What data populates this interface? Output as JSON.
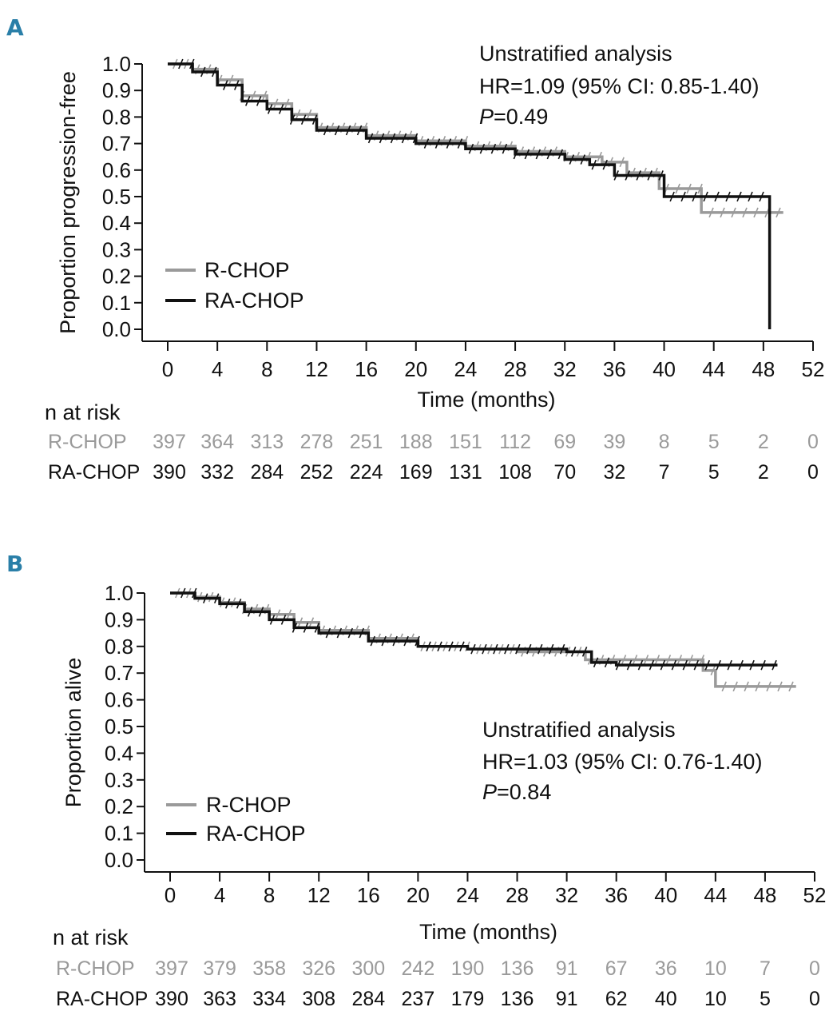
{
  "colors": {
    "r_chop": "#9a9a9a",
    "ra_chop": "#111111",
    "panel_letter": "#2a7fa8"
  },
  "chart_data": [
    {
      "type": "line",
      "panel": "A",
      "ylabel": "Proportion progression-free",
      "xlabel": "Time (months)",
      "xlim": [
        0,
        52
      ],
      "ylim": [
        0,
        1
      ],
      "x_ticks": [
        "0",
        "4",
        "8",
        "12",
        "16",
        "20",
        "24",
        "28",
        "32",
        "36",
        "40",
        "44",
        "48",
        "52"
      ],
      "y_ticks": [
        "0.0",
        "0.1",
        "0.2",
        "0.3",
        "0.4",
        "0.5",
        "0.6",
        "0.7",
        "0.8",
        "0.9",
        "1.0"
      ],
      "annotation": {
        "title": "Unstratified analysis",
        "hr": "HR=1.09 (95% CI: 0.85-1.40)",
        "p_label": "P",
        "p_value": "=0.49"
      },
      "legend": [
        "R-CHOP",
        "RA-CHOP"
      ],
      "series": [
        {
          "name": "R-CHOP",
          "x": [
            0,
            2,
            4,
            6,
            8,
            10,
            12,
            16,
            20,
            24,
            28,
            32,
            35,
            37,
            39.6,
            40.2,
            43,
            49.6
          ],
          "y": [
            1.0,
            0.98,
            0.94,
            0.88,
            0.85,
            0.81,
            0.76,
            0.73,
            0.71,
            0.69,
            0.67,
            0.65,
            0.63,
            0.59,
            0.53,
            0.53,
            0.44,
            0.44
          ]
        },
        {
          "name": "RA-CHOP",
          "x": [
            0,
            2,
            4,
            6,
            8,
            10,
            12,
            16,
            20,
            24,
            28,
            32,
            34,
            36,
            40,
            44,
            48.5,
            48.5
          ],
          "y": [
            1.0,
            0.97,
            0.92,
            0.86,
            0.83,
            0.79,
            0.75,
            0.72,
            0.7,
            0.68,
            0.66,
            0.64,
            0.62,
            0.58,
            0.5,
            0.5,
            0.5,
            0.0
          ]
        }
      ],
      "risk_table": {
        "title": "n at risk",
        "rows": [
          {
            "name": "R-CHOP",
            "values": [
              "397",
              "364",
              "313",
              "278",
              "251",
              "188",
              "151",
              "112",
              "69",
              "39",
              "8",
              "5",
              "2",
              "0"
            ]
          },
          {
            "name": "RA-CHOP",
            "values": [
              "390",
              "332",
              "284",
              "252",
              "224",
              "169",
              "131",
              "108",
              "70",
              "32",
              "7",
              "5",
              "2",
              "0"
            ]
          }
        ]
      }
    },
    {
      "type": "line",
      "panel": "B",
      "ylabel": "Proportion alive",
      "xlabel": "Time (months)",
      "xlim": [
        0,
        52
      ],
      "ylim": [
        0,
        1
      ],
      "x_ticks": [
        "0",
        "4",
        "8",
        "12",
        "16",
        "20",
        "24",
        "28",
        "32",
        "36",
        "40",
        "44",
        "48",
        "52"
      ],
      "y_ticks": [
        "0.0",
        "0.1",
        "0.2",
        "0.3",
        "0.4",
        "0.5",
        "0.6",
        "0.7",
        "0.8",
        "0.9",
        "1.0"
      ],
      "annotation": {
        "title": "Unstratified analysis",
        "hr": "HR=1.03 (95% CI: 0.76-1.40)",
        "p_label": "P",
        "p_value": "=0.84"
      },
      "legend": [
        "R-CHOP",
        "RA-CHOP"
      ],
      "series": [
        {
          "name": "R-CHOP",
          "x": [
            0,
            2,
            4,
            6,
            8,
            10,
            12,
            16,
            20,
            24,
            28,
            32,
            33.5,
            36,
            40,
            43,
            44,
            50.5
          ],
          "y": [
            1.0,
            0.985,
            0.965,
            0.94,
            0.92,
            0.89,
            0.86,
            0.83,
            0.8,
            0.79,
            0.78,
            0.78,
            0.75,
            0.75,
            0.75,
            0.71,
            0.65,
            0.65
          ]
        },
        {
          "name": "RA-CHOP",
          "x": [
            0,
            2,
            4,
            6,
            8,
            10,
            12,
            16,
            20,
            24,
            28,
            32,
            34,
            36,
            40,
            44,
            49
          ],
          "y": [
            1.0,
            0.98,
            0.96,
            0.93,
            0.9,
            0.87,
            0.85,
            0.82,
            0.8,
            0.79,
            0.79,
            0.78,
            0.74,
            0.73,
            0.73,
            0.73,
            0.73
          ]
        }
      ],
      "risk_table": {
        "title": "n at risk",
        "rows": [
          {
            "name": "R-CHOP",
            "values": [
              "397",
              "379",
              "358",
              "326",
              "300",
              "242",
              "190",
              "136",
              "91",
              "67",
              "36",
              "10",
              "7",
              "0"
            ]
          },
          {
            "name": "RA-CHOP",
            "values": [
              "390",
              "363",
              "334",
              "308",
              "284",
              "237",
              "179",
              "136",
              "91",
              "62",
              "40",
              "10",
              "5",
              "0"
            ]
          }
        ]
      }
    }
  ]
}
